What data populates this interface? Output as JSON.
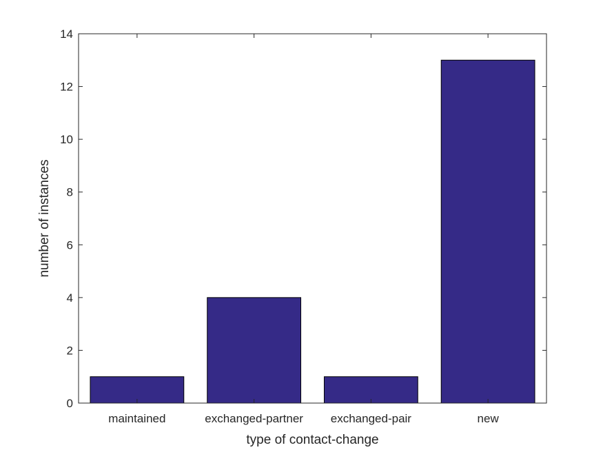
{
  "chart_data": {
    "type": "bar",
    "categories": [
      "maintained",
      "exchanged-partner",
      "exchanged-pair",
      "new"
    ],
    "values": [
      1,
      4,
      1,
      13
    ],
    "xlabel": "type of contact-change",
    "ylabel": "number of instances",
    "ylim": [
      0,
      14
    ],
    "yticks": [
      0,
      2,
      4,
      6,
      8,
      10,
      12,
      14
    ],
    "grid": false,
    "bar_color": "#352A87"
  }
}
